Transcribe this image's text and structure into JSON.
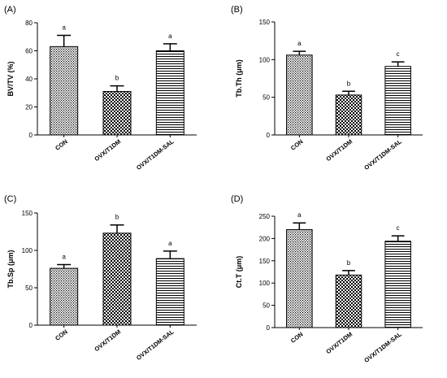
{
  "chart_data": [
    {
      "type": "bar",
      "panel": "(A)",
      "ylabel": "BV/TV (%)",
      "ylim": [
        0,
        80
      ],
      "yticks": [
        0,
        20,
        40,
        60,
        80
      ],
      "categories": [
        "CON",
        "OVX/T1DM",
        "OVX/T1DM-SAL"
      ],
      "values": [
        63,
        31,
        60
      ],
      "errors": [
        8,
        4,
        5
      ],
      "significance": [
        "a",
        "b",
        "a"
      ]
    },
    {
      "type": "bar",
      "panel": "(B)",
      "ylabel": "Tb.Th (μm)",
      "ylim": [
        0,
        150
      ],
      "yticks": [
        0,
        50,
        100,
        150
      ],
      "categories": [
        "CON",
        "OVX/T1DM",
        "OVX/T1DM-SAL"
      ],
      "values": [
        106,
        53,
        91
      ],
      "errors": [
        5,
        5,
        6
      ],
      "significance": [
        "a",
        "b",
        "c"
      ]
    },
    {
      "type": "bar",
      "panel": "(C)",
      "ylabel": "Tb.Sp (μm)",
      "ylim": [
        0,
        150
      ],
      "yticks": [
        0,
        50,
        100,
        150
      ],
      "categories": [
        "CON",
        "OVX/T1DM",
        "OVX/T1DM-SAL"
      ],
      "values": [
        76,
        123,
        89
      ],
      "errors": [
        5,
        11,
        10
      ],
      "significance": [
        "a",
        "b",
        "a"
      ]
    },
    {
      "type": "bar",
      "panel": "(D)",
      "ylabel": "Ct.T (μm)",
      "ylim": [
        0,
        250
      ],
      "yticks": [
        0,
        50,
        100,
        150,
        200,
        250
      ],
      "categories": [
        "CON",
        "OVX/T1DM",
        "OVX/T1DM-SAL"
      ],
      "values": [
        220,
        118,
        194
      ],
      "errors": [
        15,
        10,
        12
      ],
      "significance": [
        "a",
        "b",
        "c"
      ]
    }
  ]
}
